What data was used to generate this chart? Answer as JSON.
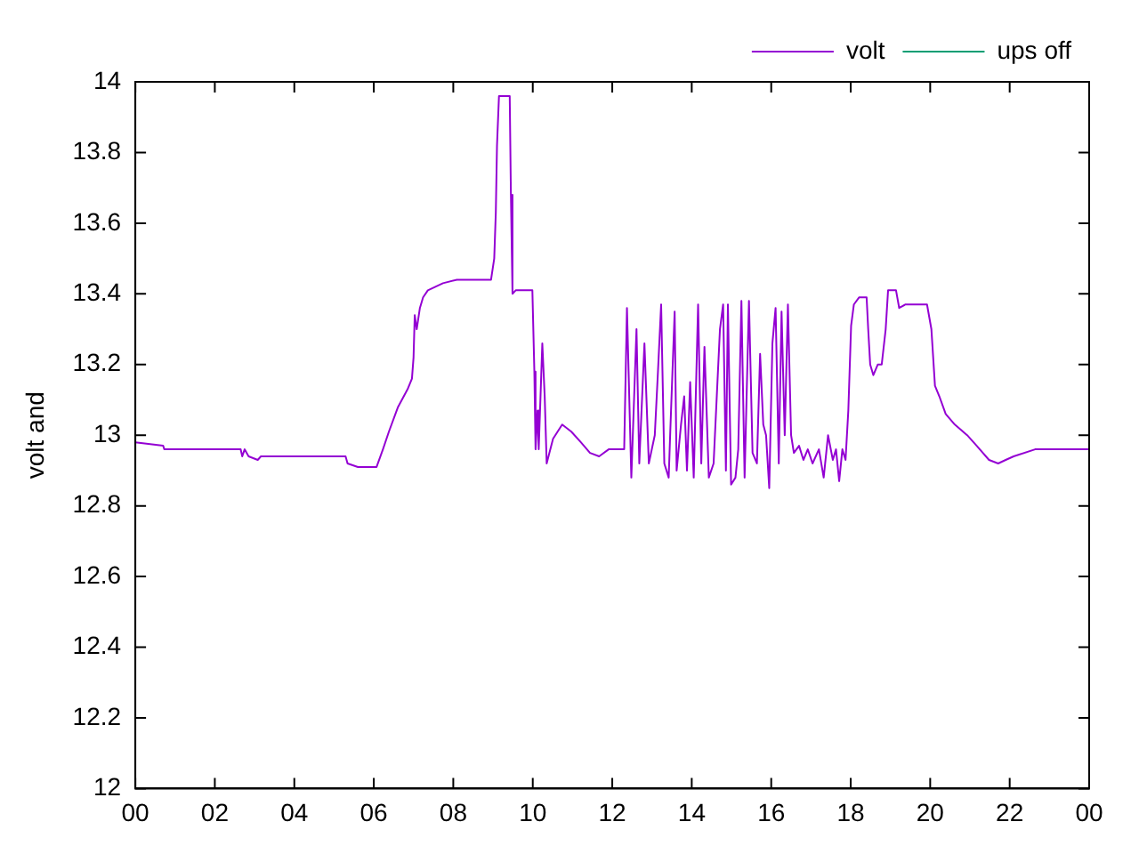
{
  "chart_data": {
    "type": "line",
    "ylabel": "volt and",
    "legend": "top right",
    "grid": false,
    "xlim": [
      0,
      24
    ],
    "xticks": [
      {
        "value": 0,
        "label": "00"
      },
      {
        "value": 2,
        "label": "02"
      },
      {
        "value": 4,
        "label": "04"
      },
      {
        "value": 6,
        "label": "06"
      },
      {
        "value": 8,
        "label": "08"
      },
      {
        "value": 10,
        "label": "10"
      },
      {
        "value": 12,
        "label": "12"
      },
      {
        "value": 14,
        "label": "14"
      },
      {
        "value": 16,
        "label": "16"
      },
      {
        "value": 18,
        "label": "18"
      },
      {
        "value": 20,
        "label": "20"
      },
      {
        "value": 22,
        "label": "22"
      },
      {
        "value": 24,
        "label": "00"
      }
    ],
    "ylim": [
      12,
      14
    ],
    "yticks": [
      12,
      12.2,
      12.4,
      12.6,
      12.8,
      13,
      13.2,
      13.4,
      13.6,
      13.8,
      14
    ],
    "series": [
      {
        "name": "volt",
        "color": "#9400d3",
        "x": [
          0,
          0.7,
          0.73,
          2.65,
          2.69,
          2.75,
          2.85,
          3.08,
          3.16,
          5.29,
          5.34,
          5.6,
          6.07,
          6.23,
          6.38,
          6.61,
          6.85,
          6.96,
          7.0,
          7.03,
          7.08,
          7.16,
          7.24,
          7.36,
          7.55,
          7.74,
          8.09,
          8.95,
          9.03,
          9.07,
          9.1,
          9.15,
          9.42,
          9.45,
          9.49,
          9.57,
          9.99,
          10.04,
          10.07,
          10.12,
          10.15,
          10.24,
          10.3,
          10.35,
          10.51,
          10.74,
          10.97,
          11.21,
          11.44,
          11.67,
          11.91,
          12.3,
          12.37,
          12.48,
          12.61,
          12.68,
          12.81,
          12.92,
          13.07,
          13.15,
          13.23,
          13.31,
          13.42,
          13.46,
          13.57,
          13.62,
          13.73,
          13.81,
          13.88,
          13.96,
          14.05,
          14.16,
          14.24,
          14.32,
          14.43,
          14.55,
          14.63,
          14.71,
          14.79,
          14.86,
          14.91,
          14.99,
          15.1,
          15.17,
          15.25,
          15.33,
          15.44,
          15.53,
          15.64,
          15.72,
          15.8,
          15.87,
          15.95,
          16.03,
          16.11,
          16.19,
          16.26,
          16.34,
          16.42,
          16.5,
          16.57,
          16.7,
          16.81,
          16.92,
          17.04,
          17.2,
          17.32,
          17.43,
          17.55,
          17.63,
          17.71,
          17.79,
          17.87,
          17.94,
          18.01,
          18.08,
          18.21,
          18.4,
          18.44,
          18.49,
          18.57,
          18.68,
          18.78,
          18.88,
          18.94,
          19.14,
          19.22,
          19.38,
          19.92,
          20.03,
          20.12,
          20.23,
          20.39,
          20.62,
          20.93,
          21.17,
          21.48,
          21.71,
          21.9,
          22.1,
          22.64,
          24
        ],
        "values": [
          12.98,
          12.97,
          12.96,
          12.96,
          12.94,
          12.96,
          12.94,
          12.93,
          12.94,
          12.94,
          12.92,
          12.91,
          12.91,
          12.96,
          13.01,
          13.08,
          13.13,
          13.16,
          13.22,
          13.34,
          13.3,
          13.36,
          13.39,
          13.41,
          13.42,
          13.43,
          13.44,
          13.44,
          13.5,
          13.63,
          13.82,
          13.96,
          13.96,
          13.68,
          13.4,
          13.41,
          13.41,
          13.18,
          12.96,
          13.07,
          12.96,
          13.26,
          13.11,
          12.92,
          12.99,
          13.03,
          13.01,
          12.98,
          12.95,
          12.94,
          12.96,
          12.96,
          13.36,
          12.88,
          13.3,
          12.92,
          13.26,
          12.92,
          13.0,
          13.18,
          13.37,
          12.92,
          12.88,
          13.01,
          13.35,
          12.9,
          13.03,
          13.11,
          12.9,
          13.15,
          12.88,
          13.37,
          12.92,
          13.25,
          12.88,
          12.92,
          13.11,
          13.3,
          13.37,
          12.9,
          13.37,
          12.86,
          12.88,
          12.96,
          13.38,
          12.88,
          13.38,
          12.95,
          12.92,
          13.23,
          13.03,
          13.0,
          12.85,
          13.26,
          13.36,
          12.92,
          13.35,
          13.0,
          13.37,
          13.0,
          12.95,
          12.97,
          12.93,
          12.96,
          12.92,
          12.96,
          12.88,
          13.0,
          12.93,
          12.96,
          12.87,
          12.96,
          12.93,
          13.07,
          13.31,
          13.37,
          13.39,
          13.39,
          13.3,
          13.2,
          13.17,
          13.2,
          13.2,
          13.3,
          13.41,
          13.41,
          13.36,
          13.37,
          13.37,
          13.3,
          13.14,
          13.11,
          13.06,
          13.03,
          13.0,
          12.97,
          12.93,
          12.92,
          12.93,
          12.94,
          12.96,
          12.96
        ]
      },
      {
        "name": "ups off",
        "color": "#009e73"
      }
    ]
  }
}
